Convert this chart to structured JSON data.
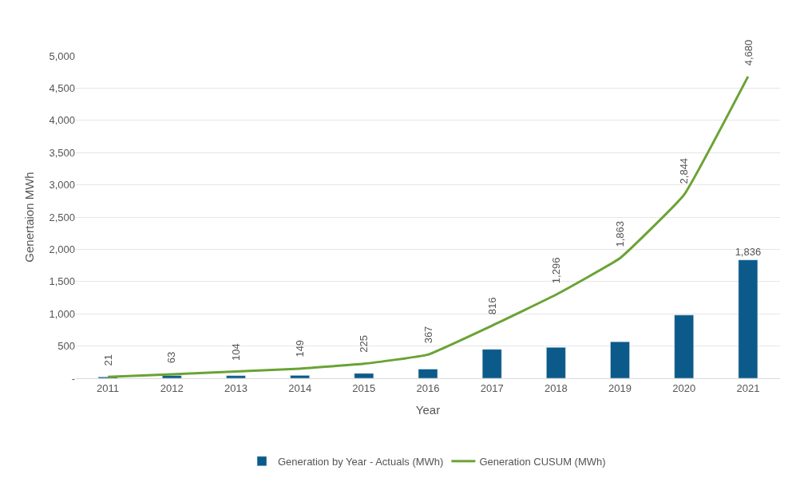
{
  "chart_data": {
    "type": "bar",
    "xlabel": "Year",
    "ylabel": "Genertaion MWh",
    "categories": [
      "2011",
      "2012",
      "2013",
      "2014",
      "2015",
      "2016",
      "2017",
      "2018",
      "2019",
      "2020",
      "2021"
    ],
    "series": [
      {
        "name": "Generation by Year - Actuals (MWh)",
        "color": "#0b5a8a",
        "values": [
          21,
          42,
          41,
          45,
          76,
          142,
          449,
          480,
          567,
          981,
          1836
        ],
        "value_labels": [
          null,
          null,
          null,
          null,
          null,
          null,
          null,
          null,
          null,
          null,
          "1,836"
        ]
      },
      {
        "name": "Generation CUSUM (MWh)",
        "type": "line",
        "color": "#6aa334",
        "values": [
          21,
          63,
          104,
          149,
          225,
          367,
          816,
          1296,
          1863,
          2844,
          4680
        ],
        "value_labels": [
          "21",
          "63",
          "104",
          "149",
          "225",
          "367",
          "816",
          "1,296",
          "1,863",
          "2,844",
          "4,680"
        ]
      }
    ],
    "ylim": [
      0,
      5000
    ],
    "yticks": [
      {
        "value": 0,
        "label": "-"
      },
      500,
      {
        "value": 1000,
        "label": "1,000"
      },
      {
        "value": 1500,
        "label": "1,500"
      },
      {
        "value": 2000,
        "label": "2,000"
      },
      {
        "value": 2500,
        "label": "2,500"
      },
      {
        "value": 3000,
        "label": "3,000"
      },
      {
        "value": 3500,
        "label": "3,500"
      },
      {
        "value": 4000,
        "label": "4,000"
      },
      {
        "value": 4500,
        "label": "4,500"
      },
      {
        "value": 5000,
        "label": "5,000"
      }
    ],
    "grid": "y",
    "legend": "bottom",
    "marker": "none",
    "line_style": "solid"
  }
}
